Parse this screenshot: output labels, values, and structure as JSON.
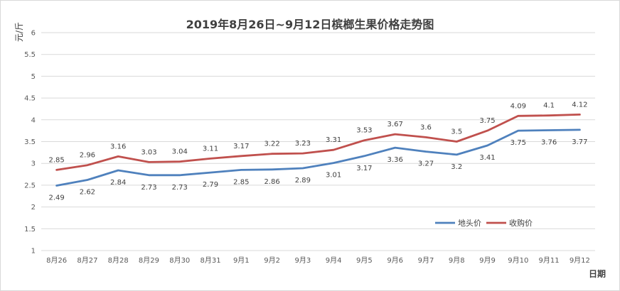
{
  "chart_data": {
    "type": "line",
    "title": "2019年8月26日~9月12日槟榔生果价格走势图",
    "xlabel": "日期",
    "ylabel": "元/斤",
    "ylim": [
      1,
      6
    ],
    "yticks": [
      "1",
      "1.5",
      "2",
      "2.5",
      "3",
      "3.5",
      "4",
      "4.5",
      "5",
      "5.5",
      "6"
    ],
    "grid": true,
    "legend_position": "bottom-right",
    "categories": [
      "8月26",
      "8月27",
      "8月28",
      "8月29",
      "8月30",
      "8月31",
      "9月1",
      "9月2",
      "9月3",
      "9月4",
      "9月5",
      "9月6",
      "9月7",
      "9月8",
      "9月9",
      "9月10",
      "9月11",
      "9月12"
    ],
    "series": [
      {
        "name": "地头价",
        "color": "#4f81bd",
        "label_position": "below",
        "values": [
          2.49,
          2.62,
          2.84,
          2.73,
          2.73,
          2.79,
          2.85,
          2.86,
          2.89,
          3.01,
          3.17,
          3.36,
          3.27,
          3.2,
          3.41,
          3.75,
          3.76,
          3.77
        ]
      },
      {
        "name": "收购价",
        "color": "#c0504d",
        "label_position": "above",
        "values": [
          2.85,
          2.96,
          3.16,
          3.03,
          3.04,
          3.11,
          3.17,
          3.22,
          3.23,
          3.31,
          3.53,
          3.67,
          3.6,
          3.5,
          3.75,
          4.09,
          4.1,
          4.12
        ]
      }
    ]
  }
}
